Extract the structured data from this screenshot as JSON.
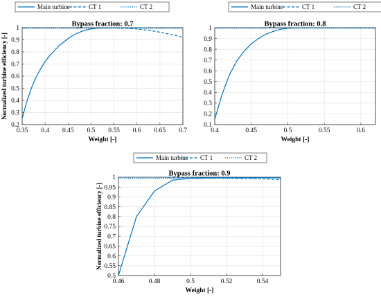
{
  "chart_data": [
    {
      "type": "line",
      "title": "Bypass fraction: 0.7",
      "xlabel": "Weight [-]",
      "ylabel": "Normalized turbine efficiency [-]",
      "xlim": [
        0.35,
        0.7
      ],
      "ylim": [
        0.2,
        1.0
      ],
      "xticks": [
        0.35,
        0.4,
        0.45,
        0.5,
        0.55,
        0.6,
        0.65,
        0.7
      ],
      "xtick_labels": [
        "0.35",
        "0.4",
        "0.45",
        "0.5",
        "0.55",
        "0.6",
        "0.65",
        "0.7"
      ],
      "yticks": [
        0.2,
        0.3,
        0.4,
        0.5,
        0.6,
        0.7,
        0.8,
        0.9,
        1.0
      ],
      "ytick_labels": [
        "0.2",
        "0.3",
        "0.4",
        "0.5",
        "0.6",
        "0.7",
        "0.8",
        "0.9",
        "1"
      ],
      "grid": true,
      "legend_position": "top",
      "series": [
        {
          "name": "Main turbine",
          "style": "solid",
          "color": "#0072bd",
          "x": [
            0.35,
            0.36,
            0.37,
            0.38,
            0.39,
            0.4,
            0.41,
            0.42,
            0.43,
            0.44,
            0.45,
            0.46,
            0.47,
            0.48,
            0.49,
            0.5,
            0.51,
            0.52,
            0.53,
            0.54,
            0.55,
            0.56,
            0.57,
            0.58,
            0.59,
            0.6,
            0.61,
            0.62,
            0.63,
            0.64,
            0.65,
            0.66,
            0.67,
            0.68,
            0.69,
            0.7
          ],
          "y": [
            0.25,
            0.39,
            0.5,
            0.59,
            0.66,
            0.72,
            0.77,
            0.81,
            0.85,
            0.88,
            0.91,
            0.935,
            0.955,
            0.97,
            0.982,
            0.99,
            0.995,
            0.998,
            0.999,
            1.0,
            1.0,
            1.0,
            1.0,
            1.0,
            1.0,
            1.0,
            1.0,
            1.0,
            1.0,
            1.0,
            1.0,
            1.0,
            1.0,
            1.0,
            1.0,
            1.0
          ]
        },
        {
          "name": "CT 1",
          "style": "dashed",
          "color": "#0072bd",
          "x": [
            0.35,
            0.4,
            0.45,
            0.5,
            0.55,
            0.58,
            0.6,
            0.62,
            0.64,
            0.66,
            0.68,
            0.7
          ],
          "y": [
            1.0,
            1.0,
            1.0,
            1.0,
            1.0,
            0.995,
            0.99,
            0.98,
            0.97,
            0.955,
            0.94,
            0.92
          ]
        },
        {
          "name": "CT 2",
          "style": "dotted",
          "color": "#0072bd",
          "x": [
            0.35,
            0.7
          ],
          "y": [
            0.995,
            0.995
          ]
        }
      ]
    },
    {
      "type": "line",
      "title": "Bypass fraction: 0.8",
      "xlabel": "Weight [-]",
      "ylabel": "",
      "xlim": [
        0.4,
        0.62
      ],
      "ylim": [
        0.1,
        1.0
      ],
      "xticks": [
        0.4,
        0.45,
        0.5,
        0.55,
        0.6
      ],
      "xtick_labels": [
        "0.4",
        "0.45",
        "0.5",
        "0.55",
        "0.6"
      ],
      "yticks": [
        0.1,
        0.2,
        0.3,
        0.4,
        0.5,
        0.6,
        0.7,
        0.8,
        0.9,
        1.0
      ],
      "ytick_labels": [
        "0.1",
        "0.2",
        "0.3",
        "0.4",
        "0.5",
        "0.6",
        "0.7",
        "0.8",
        "0.9",
        "1"
      ],
      "grid": true,
      "legend_position": "top",
      "series": [
        {
          "name": "Main turbine",
          "style": "solid",
          "color": "#0072bd",
          "x": [
            0.4,
            0.41,
            0.42,
            0.43,
            0.44,
            0.45,
            0.46,
            0.47,
            0.48,
            0.49,
            0.5,
            0.51,
            0.52,
            0.53,
            0.54,
            0.55,
            0.56,
            0.57,
            0.58,
            0.59,
            0.6,
            0.61,
            0.62
          ],
          "y": [
            0.15,
            0.38,
            0.56,
            0.69,
            0.78,
            0.85,
            0.9,
            0.94,
            0.965,
            0.985,
            0.995,
            1.0,
            1.0,
            1.0,
            1.0,
            1.0,
            1.0,
            1.0,
            1.0,
            1.0,
            1.0,
            1.0,
            1.0
          ]
        },
        {
          "name": "CT 1",
          "style": "dashed",
          "color": "#0072bd",
          "x": [
            0.4,
            0.5,
            0.55,
            0.6,
            0.62
          ],
          "y": [
            1.0,
            1.0,
            1.0,
            0.998,
            0.997
          ]
        },
        {
          "name": "CT 2",
          "style": "dotted",
          "color": "#0072bd",
          "x": [
            0.4,
            0.62
          ],
          "y": [
            0.995,
            0.995
          ]
        }
      ]
    },
    {
      "type": "line",
      "title": "Bypass fraction: 0.9",
      "xlabel": "Weight [-]",
      "ylabel": "Normalized turbine efficiency [-]",
      "xlim": [
        0.46,
        0.55
      ],
      "ylim": [
        0.5,
        1.0
      ],
      "xticks": [
        0.46,
        0.48,
        0.5,
        0.52,
        0.54
      ],
      "xtick_labels": [
        "0.46",
        "0.48",
        "0.5",
        "0.52",
        "0.54"
      ],
      "yticks": [
        0.5,
        0.55,
        0.6,
        0.65,
        0.7,
        0.75,
        0.8,
        0.85,
        0.9,
        0.95,
        1.0
      ],
      "ytick_labels": [
        "0.5",
        "0.55",
        "0.6",
        "0.65",
        "0.7",
        "0.75",
        "0.8",
        "0.85",
        "0.9",
        "0.95",
        "1"
      ],
      "grid": true,
      "legend_position": "top",
      "series": [
        {
          "name": "Main turbine",
          "style": "solid",
          "color": "#0072bd",
          "x": [
            0.46,
            0.47,
            0.48,
            0.49,
            0.5,
            0.51,
            0.52,
            0.53,
            0.54,
            0.55
          ],
          "y": [
            0.5,
            0.8,
            0.93,
            0.985,
            0.995,
            0.997,
            0.998,
            0.998,
            0.998,
            0.998
          ]
        },
        {
          "name": "CT 1",
          "style": "dashed",
          "color": "#0072bd",
          "x": [
            0.46,
            0.48,
            0.5,
            0.52,
            0.54,
            0.55
          ],
          "y": [
            1.0,
            1.0,
            0.998,
            0.996,
            0.992,
            0.988
          ]
        },
        {
          "name": "CT 2",
          "style": "dotted",
          "color": "#0072bd",
          "x": [
            0.46,
            0.5,
            0.55
          ],
          "y": [
            0.995,
            0.994,
            0.993
          ]
        }
      ]
    }
  ]
}
